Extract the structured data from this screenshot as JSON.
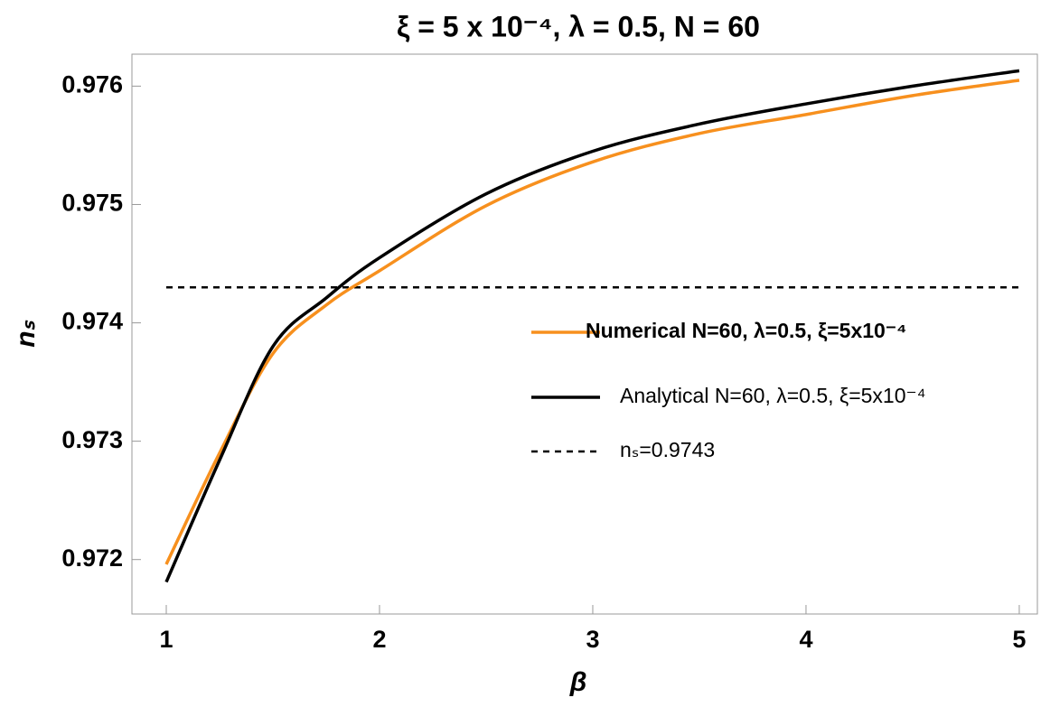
{
  "chart_data": {
    "type": "line",
    "title": "ξ = 5 x 10⁻⁴, λ = 0.5, N = 60",
    "x_label": "β",
    "y_label": "nₛ",
    "x": [
      1,
      1.25,
      1.5,
      1.75,
      2,
      2.5,
      3,
      3.5,
      4,
      4.5,
      5
    ],
    "series": [
      {
        "name": "Numerical N=60, λ=0.5, ξ=5x10⁻⁴",
        "color": "#f7901e",
        "values": [
          0.97196,
          0.9729,
          0.97374,
          0.97415,
          0.97444,
          0.97499,
          0.97536,
          0.9756,
          0.97576,
          0.97592,
          0.97605
        ]
      },
      {
        "name": "Analytical N=60, λ=0.5, ξ=5x10⁻⁴",
        "color": "#000000",
        "values": [
          0.97181,
          0.97284,
          0.9738,
          0.97421,
          0.97455,
          0.97509,
          0.97545,
          0.97568,
          0.97585,
          0.976,
          0.97613
        ]
      }
    ],
    "reference_line": {
      "name": "nₛ=0.9743",
      "value": 0.9743,
      "color": "#000000"
    },
    "xlim": [
      0.839,
      5.085
    ],
    "ylim": [
      0.97154,
      0.97627
    ],
    "xticks": [
      1,
      2,
      3,
      4,
      5
    ],
    "yticks": [
      0.972,
      0.973,
      0.974,
      0.975,
      0.976
    ]
  }
}
